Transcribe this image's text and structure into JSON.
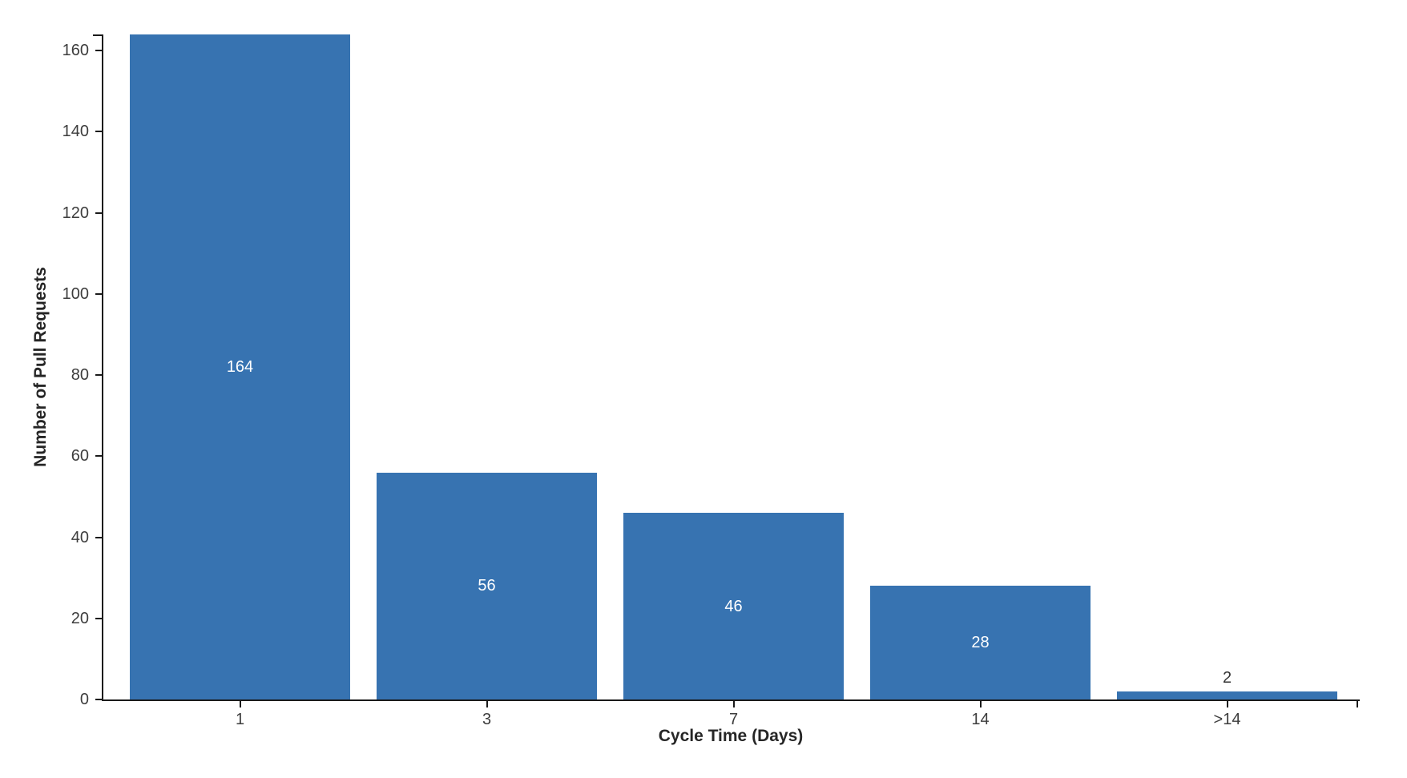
{
  "chart_data": {
    "type": "bar",
    "title": "",
    "xlabel": "Cycle Time (Days)",
    "ylabel": "Number of Pull Requests",
    "categories": [
      "1",
      "3",
      "7",
      "14",
      ">14"
    ],
    "values": [
      164,
      56,
      46,
      28,
      2
    ],
    "bar_value_labels": [
      "164",
      "56",
      "46",
      "28",
      "2"
    ],
    "yticks": [
      0,
      20,
      40,
      60,
      80,
      100,
      120,
      140,
      160
    ],
    "ylim": [
      0,
      164
    ],
    "grid": false,
    "legend_position": "none",
    "colors": {
      "bar_fill": "#3773B1",
      "axis_line": "#1a1a1a",
      "tick_label": "#3d3d3d",
      "axis_title": "#262626",
      "value_label_inside": "#ffffff",
      "value_label_outside": "#333333"
    }
  }
}
